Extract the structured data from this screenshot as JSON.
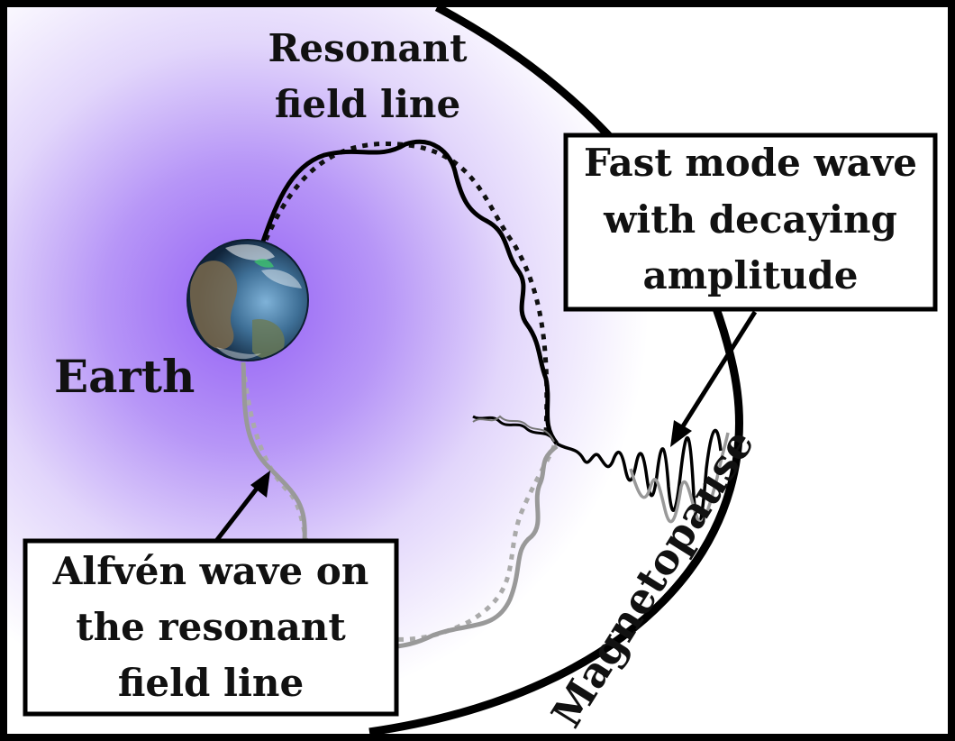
{
  "labels": {
    "resonant_line1": "Resonant",
    "resonant_line2": "field line",
    "earth": "Earth",
    "magnetopause": "Magnetopause",
    "fast_line1": "Fast mode wave",
    "fast_line2": "with decaying",
    "fast_line3": "amplitude",
    "alfven_line1": "Alfvén wave on",
    "alfven_line2": "the resonant",
    "alfven_line3": "field line"
  },
  "colors": {
    "frame": "#000000",
    "glow_center": "#9966ff",
    "field_line_north": "#000000",
    "field_line_south": "#999999",
    "earth_ocean": "#3a6f9e",
    "earth_land": "#7a6a4e"
  }
}
